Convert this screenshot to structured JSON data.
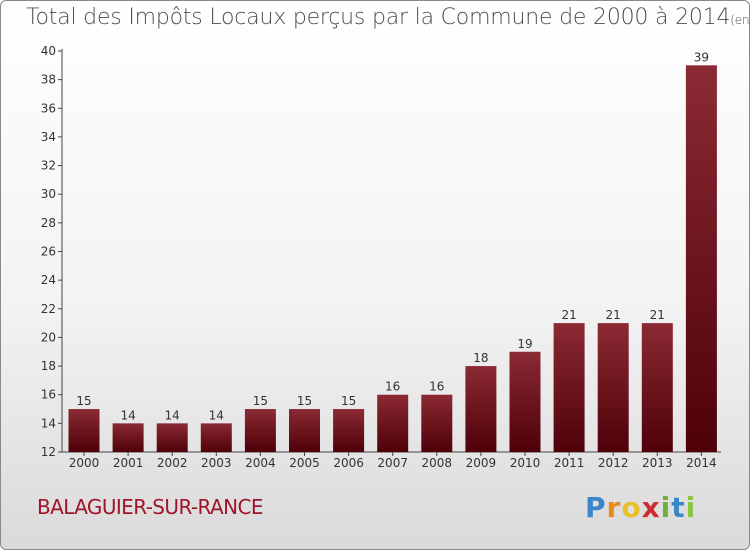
{
  "chart_data": {
    "type": "bar",
    "title": "Total des Impôts Locaux perçus par la Commune de 2000 à 2014",
    "unit_note": "(en milliers d'€)",
    "categories": [
      "2000",
      "2001",
      "2002",
      "2003",
      "2004",
      "2005",
      "2006",
      "2007",
      "2008",
      "2009",
      "2010",
      "2011",
      "2012",
      "2013",
      "2014"
    ],
    "values": [
      15,
      14,
      14,
      14,
      15,
      15,
      15,
      16,
      16,
      18,
      19,
      21,
      21,
      21,
      39
    ],
    "ylim": [
      12,
      40
    ],
    "yticks": [
      12,
      14,
      16,
      18,
      20,
      22,
      24,
      26,
      28,
      30,
      32,
      34,
      36,
      38,
      40
    ],
    "xlabel": "",
    "ylabel": "",
    "grid": false,
    "bar_color_top": "#8b2a35",
    "bar_color_bottom": "#4e0008"
  },
  "footer": {
    "commune": "BALAGUIER-SUR-RANCE",
    "logo": [
      "P",
      "r",
      "o",
      "x",
      "i",
      "t",
      "i"
    ]
  }
}
